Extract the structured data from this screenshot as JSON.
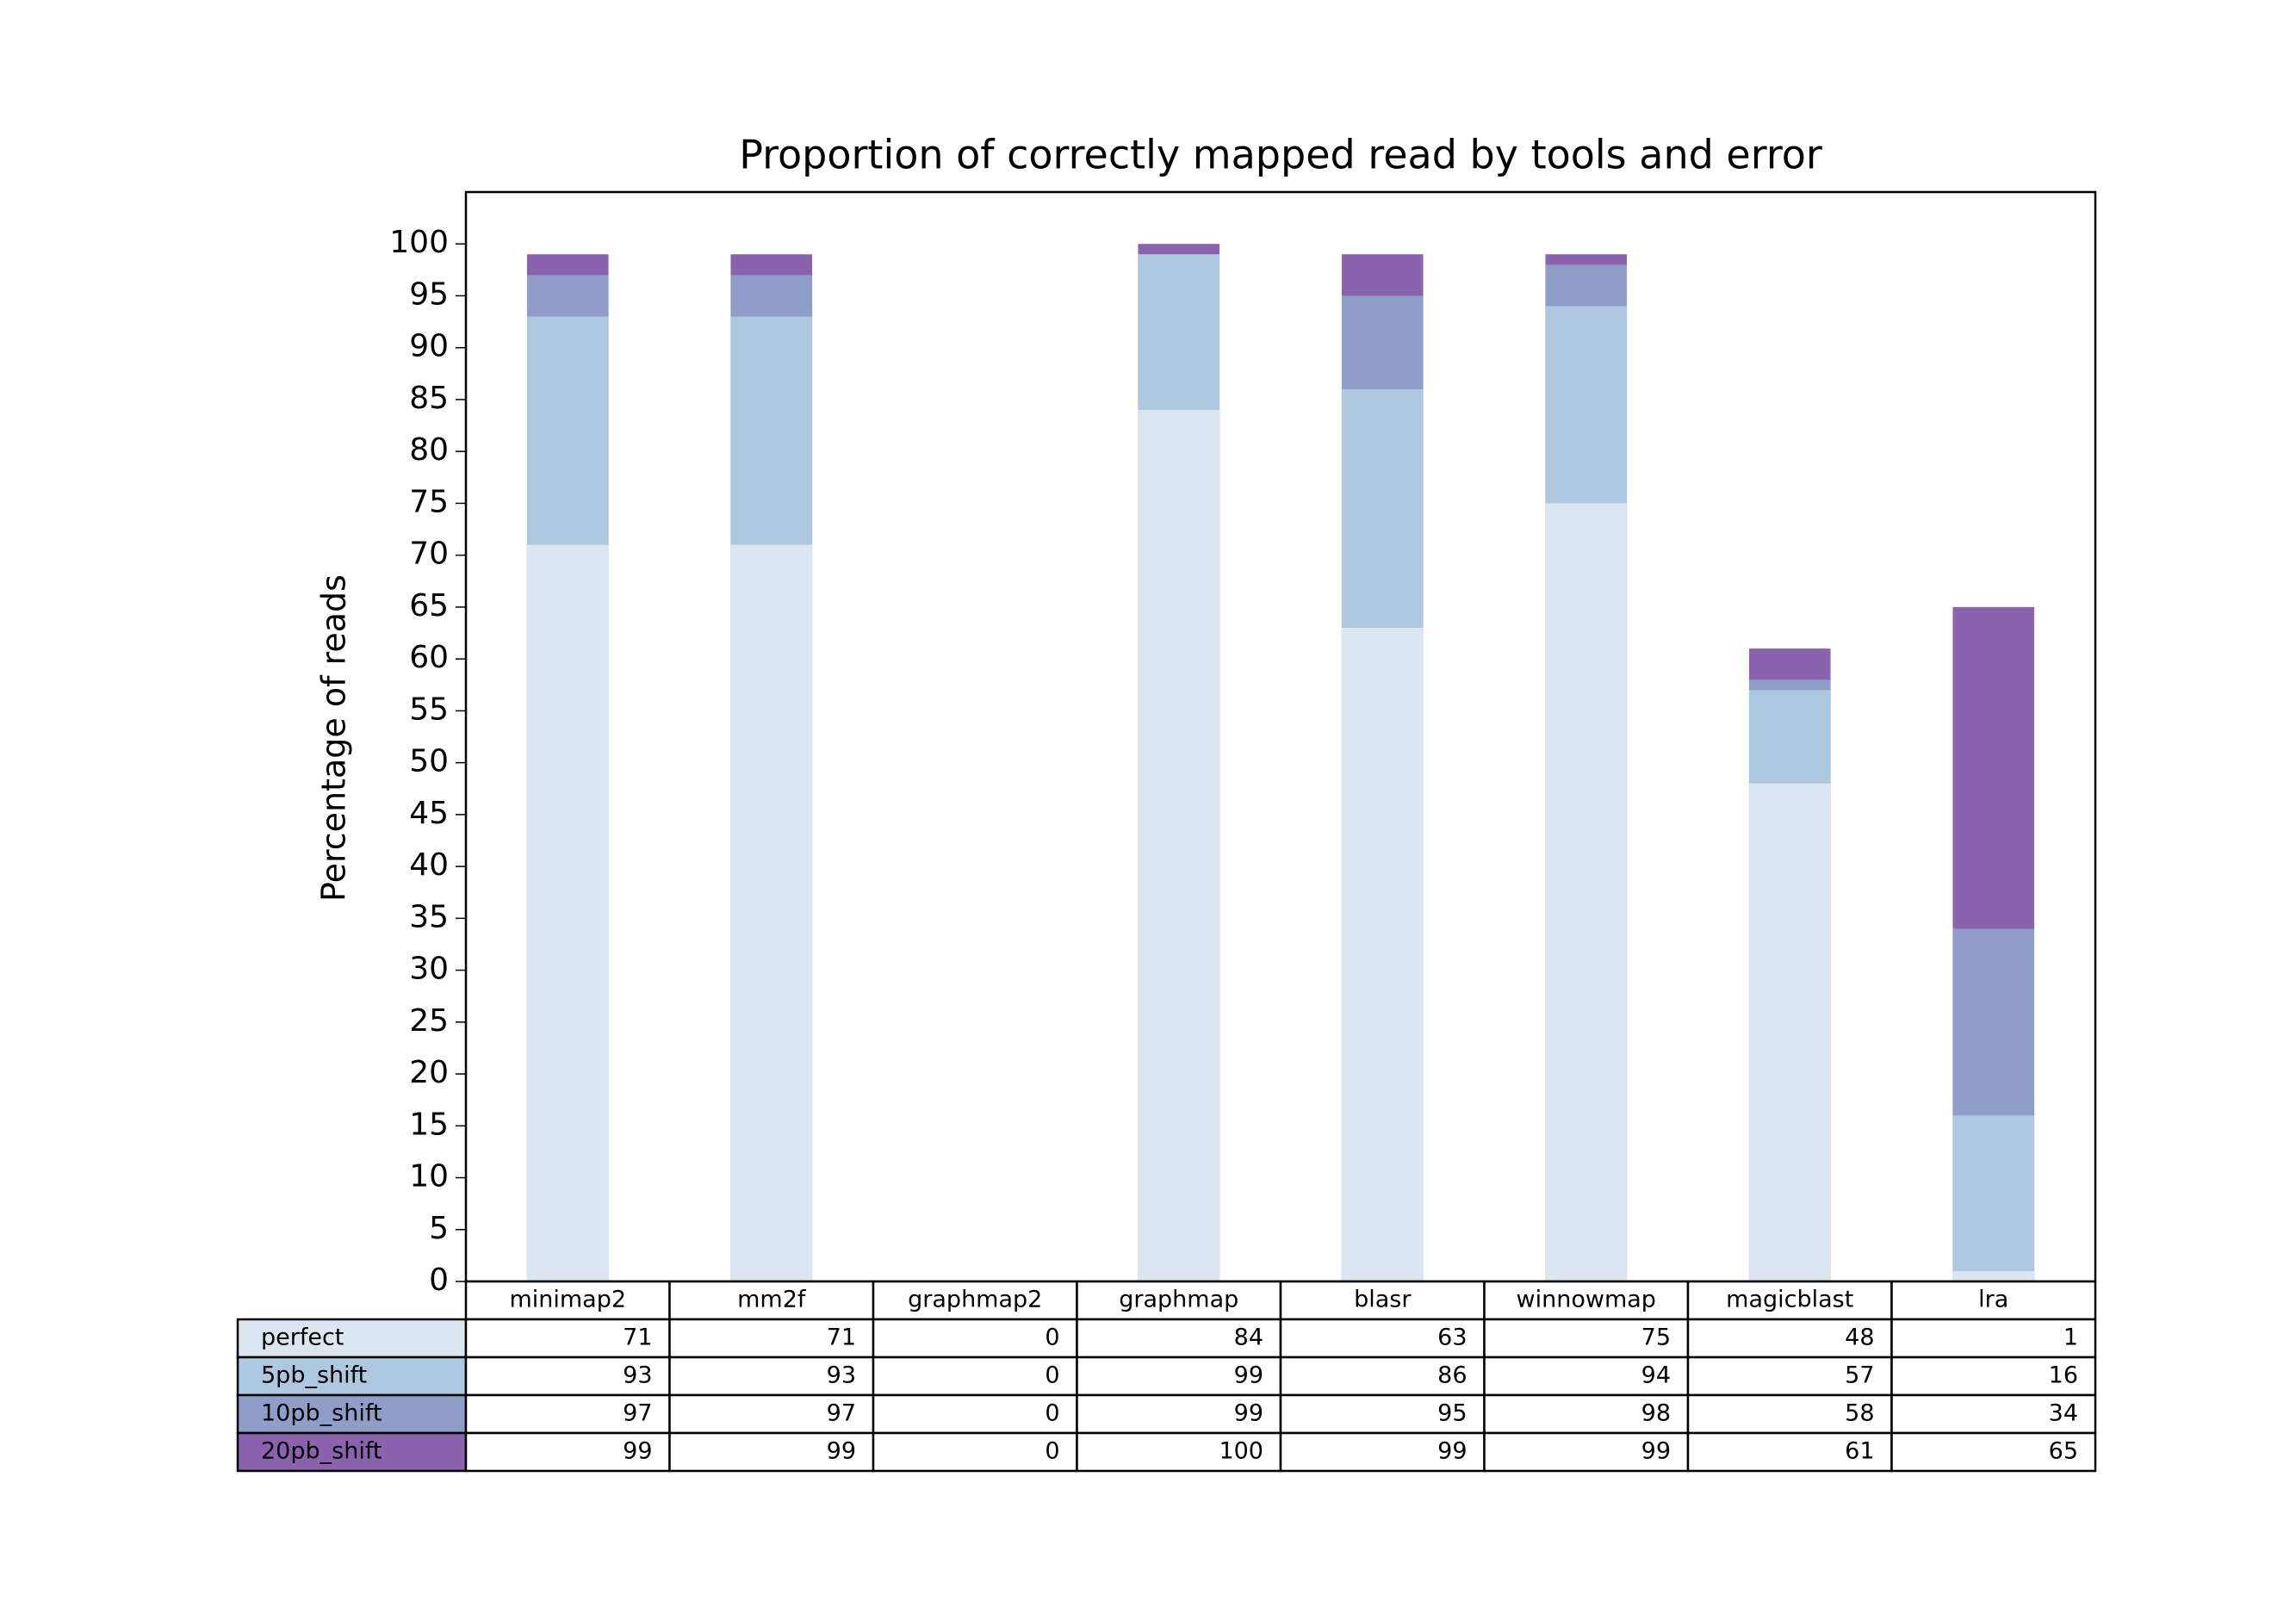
{
  "chart_data": {
    "type": "bar",
    "title": "Proportion of correctly mapped read by tools and error",
    "ylabel": "Percentage of reads",
    "categories": [
      "minimap2",
      "mm2f",
      "graphmap2",
      "graphmap",
      "blasr",
      "winnowmap",
      "magicblast",
      "lra"
    ],
    "series": [
      {
        "name": "perfect",
        "color": "#dce6f0",
        "values": [
          71,
          71,
          0,
          84,
          63,
          75,
          48,
          1
        ]
      },
      {
        "name": "5pb_shift",
        "color": "#aec8e0",
        "values": [
          93,
          93,
          0,
          99,
          86,
          94,
          57,
          16
        ]
      },
      {
        "name": "10pb_shift",
        "color": "#8f9dc9",
        "values": [
          97,
          97,
          0,
          99,
          95,
          98,
          58,
          34
        ]
      },
      {
        "name": "20pb_shift",
        "color": "#8b62ae",
        "values": [
          99,
          99,
          0,
          100,
          99,
          99,
          61,
          65
        ]
      }
    ],
    "ylim": [
      0,
      105
    ],
    "yticks": [
      0,
      5,
      10,
      15,
      20,
      25,
      30,
      35,
      40,
      45,
      50,
      55,
      60,
      65,
      70,
      75,
      80,
      85,
      90,
      95,
      100
    ]
  }
}
